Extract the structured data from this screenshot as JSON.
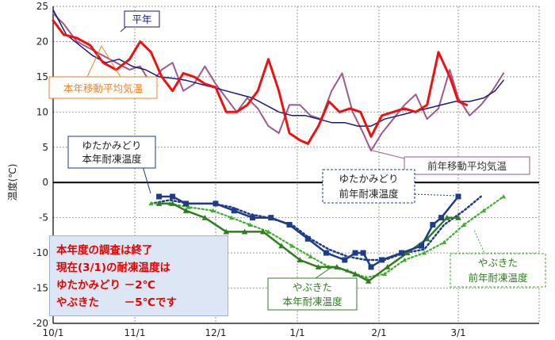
{
  "chart_data": {
    "type": "line",
    "ylabel": "温度(℃)",
    "ylim": [
      -20,
      25
    ],
    "yticks": [
      25,
      20,
      15,
      10,
      5,
      0,
      -5,
      -10,
      -15,
      -20
    ],
    "xticks": [
      "10/1",
      "11/1",
      "12/1",
      "1/1",
      "2/1",
      "3/1"
    ],
    "grid": true,
    "series": [
      {
        "name": "平年",
        "color": "#1a1a7a",
        "points": [
          [
            "10/1",
            24.5
          ],
          [
            "10/6",
            21
          ],
          [
            "10/11",
            19.5
          ],
          [
            "10/16",
            18
          ],
          [
            "10/21",
            17
          ],
          [
            "10/26",
            17.5
          ],
          [
            "10/31",
            16.5
          ],
          [
            "11/5",
            16
          ],
          [
            "11/10",
            15
          ],
          [
            "11/15",
            14.8
          ],
          [
            "11/20",
            14.5
          ],
          [
            "11/25",
            14
          ],
          [
            "11/30",
            13.5
          ],
          [
            "12/5",
            13
          ],
          [
            "12/10",
            12.5
          ],
          [
            "12/15",
            12
          ],
          [
            "12/20",
            11
          ],
          [
            "12/25",
            10
          ],
          [
            "12/30",
            9.5
          ],
          [
            "1/4",
            9.5
          ],
          [
            "1/9",
            9
          ],
          [
            "1/14",
            8.5
          ],
          [
            "1/19",
            8.5
          ],
          [
            "1/24",
            8
          ],
          [
            "1/29",
            8
          ],
          [
            "2/3",
            9
          ],
          [
            "2/8",
            9.5
          ],
          [
            "2/13",
            10
          ],
          [
            "2/18",
            10.5
          ],
          [
            "2/23",
            11
          ],
          [
            "2/28",
            11.5
          ],
          [
            "3/5",
            11.5
          ],
          [
            "3/10",
            12
          ],
          [
            "3/14",
            13
          ],
          [
            "3/17",
            14.5
          ]
        ]
      },
      {
        "name": "本年移動平均気温",
        "color": "#ee1111",
        "points": [
          [
            "10/1",
            23
          ],
          [
            "10/5",
            21
          ],
          [
            "10/10",
            20.5
          ],
          [
            "10/15",
            19.5
          ],
          [
            "10/20",
            17
          ],
          [
            "10/25",
            16
          ],
          [
            "10/30",
            17.5
          ],
          [
            "11/3",
            20
          ],
          [
            "11/7",
            18.5
          ],
          [
            "11/11",
            15
          ],
          [
            "11/15",
            13
          ],
          [
            "11/19",
            15.5
          ],
          [
            "11/23",
            15
          ],
          [
            "11/27",
            14
          ],
          [
            "12/1",
            13.5
          ],
          [
            "12/5",
            10
          ],
          [
            "12/9",
            10
          ],
          [
            "12/13",
            11
          ],
          [
            "12/17",
            13
          ],
          [
            "12/21",
            17.5
          ],
          [
            "12/25",
            13
          ],
          [
            "12/29",
            7
          ],
          [
            "1/2",
            6
          ],
          [
            "1/5",
            5.5
          ],
          [
            "1/9",
            8
          ],
          [
            "1/13",
            11.5
          ],
          [
            "1/17",
            10
          ],
          [
            "1/21",
            10.5
          ],
          [
            "1/25",
            10
          ],
          [
            "1/29",
            6.5
          ],
          [
            "2/2",
            9.5
          ],
          [
            "2/6",
            10
          ],
          [
            "2/10",
            10.5
          ],
          [
            "2/14",
            10
          ],
          [
            "2/18",
            11
          ],
          [
            "2/22",
            18.5
          ],
          [
            "2/26",
            15
          ],
          [
            "3/1",
            11.5
          ],
          [
            "3/4",
            11
          ]
        ]
      },
      {
        "name": "前年移動平均気温",
        "color": "#9c5a8c",
        "points": [
          [
            "10/1",
            24
          ],
          [
            "10/5",
            22.5
          ],
          [
            "10/10",
            20
          ],
          [
            "10/15",
            19
          ],
          [
            "10/20",
            18
          ],
          [
            "10/25",
            17
          ],
          [
            "10/30",
            16
          ],
          [
            "11/3",
            16.5
          ],
          [
            "11/7",
            14
          ],
          [
            "11/11",
            16
          ],
          [
            "11/15",
            17
          ],
          [
            "11/19",
            13
          ],
          [
            "11/23",
            14
          ],
          [
            "11/27",
            16.5
          ],
          [
            "12/1",
            14
          ],
          [
            "12/5",
            12
          ],
          [
            "12/9",
            10
          ],
          [
            "12/13",
            12
          ],
          [
            "12/17",
            10.5
          ],
          [
            "12/21",
            8
          ],
          [
            "12/25",
            7
          ],
          [
            "12/29",
            11
          ],
          [
            "1/2",
            11
          ],
          [
            "1/6",
            9.5
          ],
          [
            "1/10",
            9
          ],
          [
            "1/14",
            13
          ],
          [
            "1/18",
            15.5
          ],
          [
            "1/22",
            10
          ],
          [
            "1/26",
            7
          ],
          [
            "1/29",
            4.5
          ],
          [
            "2/2",
            7
          ],
          [
            "2/6",
            9
          ],
          [
            "2/10",
            11
          ],
          [
            "2/14",
            12.5
          ],
          [
            "2/18",
            9
          ],
          [
            "2/22",
            10.5
          ],
          [
            "2/26",
            16
          ],
          [
            "3/1",
            12
          ],
          [
            "3/5",
            9.5
          ],
          [
            "3/9",
            11
          ],
          [
            "3/13",
            13
          ],
          [
            "3/17",
            15.5
          ]
        ]
      },
      {
        "name": "ゆたかみどり 本年耐凍温度",
        "color": "#1f3c88",
        "points": [
          [
            "11/10",
            -2
          ],
          [
            "11/15",
            -2
          ],
          [
            "11/20",
            -3
          ],
          [
            "12/1",
            -3
          ],
          [
            "12/8",
            -4
          ],
          [
            "12/15",
            -5
          ],
          [
            "12/22",
            -5
          ],
          [
            "12/29",
            -6
          ],
          [
            "1/5",
            -8
          ],
          [
            "1/12",
            -10
          ],
          [
            "1/19",
            -11
          ],
          [
            "1/23",
            -10
          ],
          [
            "1/26",
            -10
          ],
          [
            "1/29",
            -12
          ],
          [
            "2/2",
            -11
          ],
          [
            "2/9",
            -10
          ],
          [
            "2/16",
            -9
          ],
          [
            "2/20",
            -6
          ],
          [
            "2/23",
            -5
          ],
          [
            "3/1",
            -2
          ]
        ]
      },
      {
        "name": "やぶきた 本年耐凍温度",
        "color": "#2e7d1e",
        "points": [
          [
            "11/10",
            -3
          ],
          [
            "11/15",
            -3
          ],
          [
            "11/20",
            -4
          ],
          [
            "11/27",
            -5
          ],
          [
            "12/5",
            -7
          ],
          [
            "12/12",
            -7
          ],
          [
            "12/19",
            -7
          ],
          [
            "12/26",
            -9
          ],
          [
            "1/2",
            -11
          ],
          [
            "1/9",
            -12
          ],
          [
            "1/16",
            -12
          ],
          [
            "1/23",
            -13
          ],
          [
            "1/28",
            -14
          ],
          [
            "2/4",
            -12
          ],
          [
            "2/11",
            -10
          ],
          [
            "2/18",
            -8
          ],
          [
            "2/25",
            -5
          ],
          [
            "3/1",
            -5
          ]
        ]
      },
      {
        "name": "ゆたかみどり 前年耐凍温度",
        "color": "#1f3c88",
        "dotted": true,
        "points": [
          [
            "11/7",
            -3
          ],
          [
            "11/14",
            -2.5
          ],
          [
            "11/21",
            -3
          ],
          [
            "11/30",
            -3
          ],
          [
            "12/7",
            -3.5
          ],
          [
            "12/14",
            -4.5
          ],
          [
            "12/21",
            -5
          ],
          [
            "12/30",
            -6
          ],
          [
            "1/6",
            -8
          ],
          [
            "1/13",
            -9.5
          ],
          [
            "1/20",
            -10.5
          ],
          [
            "1/27",
            -11
          ],
          [
            "2/3",
            -11
          ],
          [
            "2/10",
            -10
          ],
          [
            "2/17",
            -9.5
          ],
          [
            "2/24",
            -6
          ],
          [
            "3/3",
            -4
          ],
          [
            "3/9",
            -2
          ]
        ]
      },
      {
        "name": "やぶきた 前年耐凍温度",
        "color": "#3fae2a",
        "dotted": true,
        "points": [
          [
            "11/7",
            -3
          ],
          [
            "11/14",
            -3
          ],
          [
            "11/21",
            -3.5
          ],
          [
            "11/30",
            -4
          ],
          [
            "12/7",
            -5
          ],
          [
            "12/14",
            -6
          ],
          [
            "12/21",
            -7
          ],
          [
            "12/30",
            -9
          ],
          [
            "1/6",
            -10.5
          ],
          [
            "1/13",
            -12
          ],
          [
            "1/20",
            -12.5
          ],
          [
            "1/27",
            -13.5
          ],
          [
            "2/3",
            -13
          ],
          [
            "2/10",
            -11
          ],
          [
            "2/17",
            -10
          ],
          [
            "2/24",
            -8.5
          ],
          [
            "3/3",
            -6
          ],
          [
            "3/10",
            -4
          ],
          [
            "3/17",
            -2
          ]
        ]
      }
    ]
  },
  "labels": {
    "heinen": "平年",
    "honnen_ido": "本年移動平均気温",
    "zennen_ido": "前年移動平均気温",
    "yutaka_honnen_1": "ゆたかみどり",
    "yutaka_honnen_2": "本年耐凍温度",
    "yutaka_zennen_1": "ゆたかみどり",
    "yutaka_zennen_2": "前年耐凍温度",
    "yabukita_honnen_1": "やぶきた",
    "yabukita_honnen_2": "本年耐凍温度",
    "yabukita_zennen_1": "やぶきた",
    "yabukita_zennen_2": "前年耐凍温度"
  },
  "status": {
    "line1": "本年度の調査は終了",
    "line2": "現在(3/1)の耐凍温度は",
    "line3": "ゆたかみどり －2℃",
    "line4": "やぶきた　　 －5℃です"
  }
}
